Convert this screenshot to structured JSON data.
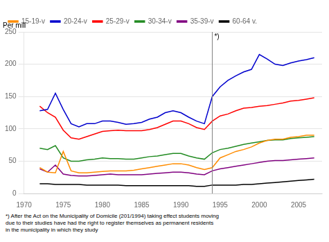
{
  "chart_data": {
    "type": "line",
    "ylabel": "Per mill",
    "x": [
      1972,
      1973,
      1974,
      1975,
      1976,
      1977,
      1978,
      1979,
      1980,
      1981,
      1982,
      1983,
      1984,
      1985,
      1986,
      1987,
      1988,
      1989,
      1990,
      1991,
      1992,
      1993,
      1994,
      1995,
      1996,
      1997,
      1998,
      1999,
      2000,
      2001,
      2002,
      2003,
      2004,
      2005,
      2006,
      2007
    ],
    "series": [
      {
        "name": "15-19-v",
        "color": "#FF8C00",
        "values": [
          40,
          33,
          32,
          65,
          35,
          32,
          32,
          33,
          34,
          35,
          35,
          35,
          36,
          38,
          40,
          42,
          44,
          46,
          46,
          44,
          40,
          37,
          40,
          55,
          60,
          65,
          68,
          72,
          78,
          82,
          84,
          84,
          87,
          88,
          90,
          90
        ]
      },
      {
        "name": "20-24-v",
        "color": "#0000CD",
        "values": [
          128,
          130,
          155,
          130,
          108,
          103,
          108,
          108,
          112,
          112,
          110,
          107,
          108,
          110,
          115,
          118,
          125,
          128,
          125,
          118,
          112,
          108,
          150,
          165,
          175,
          182,
          188,
          192,
          215,
          208,
          200,
          198,
          202,
          205,
          207,
          210
        ]
      },
      {
        "name": "25-29-v",
        "color": "#FF0000",
        "values": [
          135,
          125,
          118,
          98,
          86,
          84,
          88,
          92,
          96,
          97,
          98,
          97,
          97,
          97,
          99,
          102,
          107,
          112,
          112,
          108,
          102,
          99,
          112,
          120,
          123,
          128,
          132,
          133,
          135,
          136,
          138,
          140,
          143,
          144,
          146,
          148
        ]
      },
      {
        "name": "30-34-v",
        "color": "#228B22",
        "values": [
          70,
          68,
          74,
          55,
          50,
          50,
          52,
          53,
          55,
          54,
          54,
          53,
          53,
          55,
          57,
          58,
          60,
          62,
          62,
          58,
          55,
          53,
          63,
          68,
          70,
          73,
          76,
          78,
          80,
          82,
          83,
          83,
          85,
          86,
          87,
          88
        ]
      },
      {
        "name": "35-39-v",
        "color": "#800080",
        "values": [
          38,
          33,
          44,
          30,
          28,
          27,
          27,
          28,
          29,
          30,
          29,
          29,
          29,
          29,
          30,
          31,
          32,
          33,
          33,
          32,
          30,
          29,
          35,
          38,
          40,
          42,
          44,
          46,
          48,
          50,
          51,
          51,
          52,
          53,
          54,
          55
        ]
      },
      {
        "name": "60-64 v.",
        "color": "#000000",
        "values": [
          15,
          15,
          14,
          14,
          14,
          14,
          13,
          13,
          13,
          13,
          13,
          12,
          12,
          12,
          12,
          12,
          12,
          12,
          12,
          12,
          11,
          11,
          13,
          13,
          13,
          13,
          14,
          14,
          15,
          16,
          17,
          18,
          19,
          20,
          21,
          22
        ]
      }
    ],
    "xlim": [
      1970,
      2008
    ],
    "xticks": [
      1970,
      1975,
      1980,
      1985,
      1990,
      1995,
      2000,
      2005
    ],
    "ylim": [
      0,
      250
    ],
    "yticks": [
      0,
      50,
      100,
      150,
      200,
      250
    ],
    "grid": "y",
    "legend": "upper left",
    "vline": {
      "x": 1994,
      "label": "*)"
    },
    "footnote": "*) After the Act on the Municipality of Domicile (201/1994) taking effect students moving\ndue to their studies have had the right to register themselves as permanent residents\nin the municipality in which they study"
  }
}
